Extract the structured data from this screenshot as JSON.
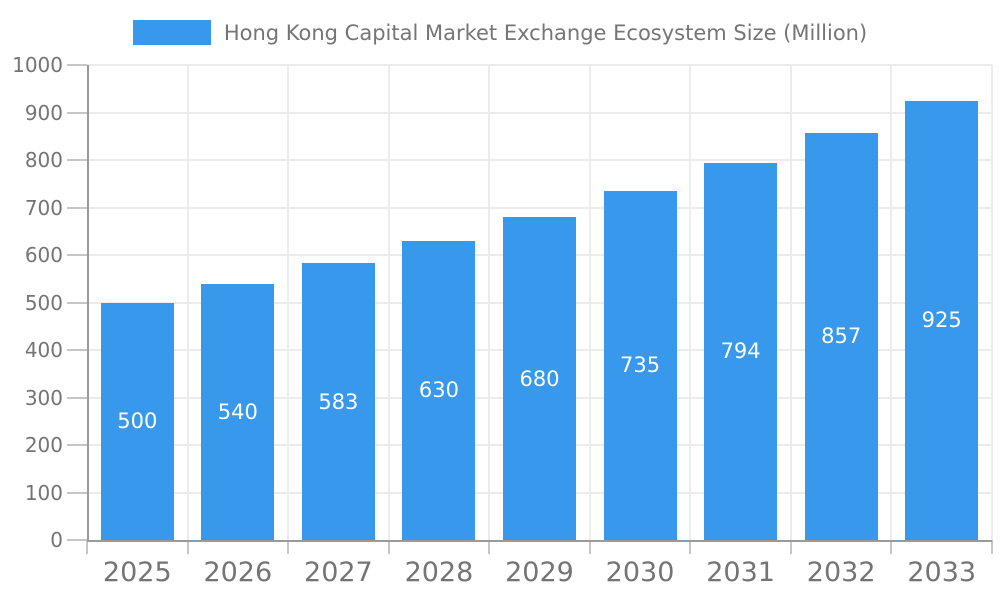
{
  "chart_data": {
    "type": "bar",
    "title": "Hong Kong Capital Market Exchange Ecosystem Size (Million)",
    "categories": [
      "2025",
      "2026",
      "2027",
      "2028",
      "2029",
      "2030",
      "2031",
      "2032",
      "2033"
    ],
    "values": [
      500,
      540,
      583,
      630,
      680,
      735,
      794,
      857,
      925
    ],
    "xlabel": "",
    "ylabel": "",
    "ylim": [
      0,
      1000
    ],
    "ytick_step": 100,
    "grid": true,
    "legend_position": "top",
    "bar_value_labels": "inside-center"
  },
  "colors": {
    "bar": "#3898EC",
    "bar_label": "#FFFFFF",
    "axis_text": "#747474",
    "axis_line": "#9A9A9A",
    "tick": "#C6C6C6",
    "gridline": "#ECECEC",
    "background": "#FFFFFF"
  }
}
